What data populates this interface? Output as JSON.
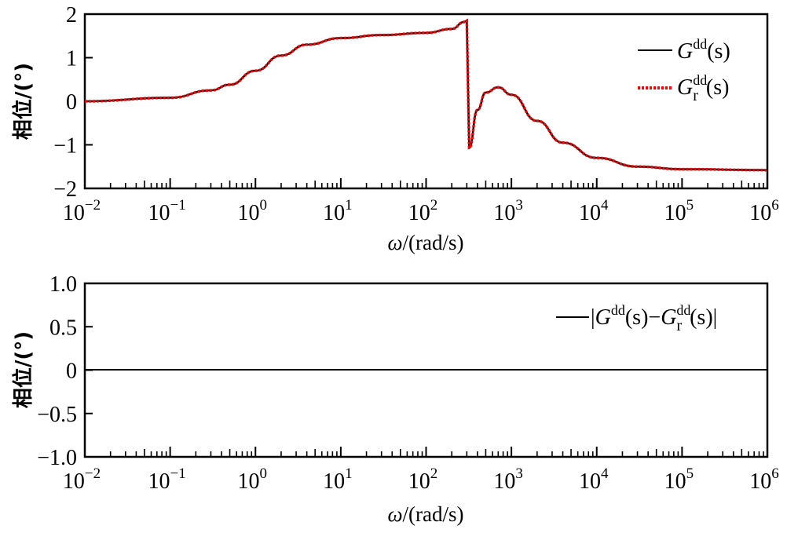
{
  "chart_data": [
    {
      "type": "line",
      "title": "",
      "xlabel": "ω/(rad/s)",
      "ylabel": "相位/(°)",
      "xscale": "log",
      "xlim": [
        0.01,
        1000000
      ],
      "ylim": [
        -2,
        2
      ],
      "xticks": [
        "10^-2",
        "10^-1",
        "10^0",
        "10^1",
        "10^2",
        "10^3",
        "10^4",
        "10^5",
        "10^6"
      ],
      "yticks": [
        "-2",
        "-1",
        "0",
        "1",
        "2"
      ],
      "grid": false,
      "legend_position": "upper right",
      "x": [
        0.01,
        0.1,
        0.3,
        0.5,
        1,
        2,
        4,
        10,
        30,
        100,
        200,
        280,
        300,
        320,
        400,
        500,
        700,
        1000,
        2000,
        4000,
        10000,
        30000,
        100000,
        1000000
      ],
      "series": [
        {
          "name": "G^dd(s)",
          "color": "#000000",
          "style": "solid",
          "values": [
            0.0,
            0.08,
            0.25,
            0.38,
            0.7,
            1.05,
            1.3,
            1.45,
            1.52,
            1.57,
            1.66,
            1.82,
            1.85,
            -1.07,
            -0.2,
            0.2,
            0.32,
            0.15,
            -0.45,
            -0.95,
            -1.3,
            -1.5,
            -1.56,
            -1.58
          ]
        },
        {
          "name": "G_r^dd(s)",
          "color": "#ff0000",
          "style": "dotted",
          "values": [
            0.0,
            0.08,
            0.25,
            0.38,
            0.7,
            1.05,
            1.3,
            1.45,
            1.52,
            1.57,
            1.66,
            1.82,
            1.85,
            -1.07,
            -0.2,
            0.2,
            0.32,
            0.15,
            -0.45,
            -0.95,
            -1.3,
            -1.5,
            -1.56,
            -1.58
          ]
        }
      ]
    },
    {
      "type": "line",
      "title": "",
      "xlabel": "ω/(rad/s)",
      "ylabel": "相位/(°)",
      "xscale": "log",
      "xlim": [
        0.01,
        1000000
      ],
      "ylim": [
        -1.0,
        1.0
      ],
      "xticks": [
        "10^-2",
        "10^-1",
        "10^0",
        "10^1",
        "10^2",
        "10^3",
        "10^4",
        "10^5",
        "10^6"
      ],
      "yticks": [
        "-1.0",
        "-0.5",
        "0",
        "0.5",
        "1.0"
      ],
      "grid": false,
      "legend_position": "upper right",
      "x": [
        0.01,
        1000000
      ],
      "series": [
        {
          "name": "|G^dd(s)-G_r^dd(s)|",
          "color": "#000000",
          "style": "solid",
          "values": [
            0,
            0
          ]
        }
      ]
    }
  ],
  "top": {
    "ylabel": "相位/(°)",
    "xlabel_omega": "ω",
    "xlabel_unit": "/(rad/s)",
    "yticks": [
      {
        "label": "2",
        "v": 2
      },
      {
        "label": "1",
        "v": 1
      },
      {
        "label": "0",
        "v": 0
      },
      {
        "label": "−1",
        "v": -1
      },
      {
        "label": "−2",
        "v": -2
      }
    ],
    "legend": [
      {
        "G": "G",
        "sup": "dd",
        "sub": "",
        "arg": "(s)"
      },
      {
        "G": "G",
        "sup": "dd",
        "sub": "r",
        "arg": "(s)"
      }
    ]
  },
  "bottom": {
    "ylabel": "相位/(°)",
    "xlabel_omega": "ω",
    "xlabel_unit": "/(rad/s)",
    "yticks": [
      {
        "label": "1.0",
        "v": 1.0
      },
      {
        "label": "0.5",
        "v": 0.5
      },
      {
        "label": "0",
        "v": 0
      },
      {
        "label": "−0.5",
        "v": -0.5
      },
      {
        "label": "−1.0",
        "v": -1.0
      }
    ],
    "legend": {
      "bar": "|",
      "G1": "G",
      "sup1": "dd",
      "arg1": "(s)",
      "minus": "−",
      "G2": "G",
      "sup2": "dd",
      "sub2": "r",
      "arg2": "(s)",
      "bar2": "|"
    }
  },
  "xtick_base": "10",
  "xtick_exps": [
    "−2",
    "−1",
    "0",
    "1",
    "2",
    "3",
    "4",
    "5",
    "6"
  ],
  "colors": {
    "series1": "#000000",
    "series2": "#ff0000",
    "axis": "#000000"
  }
}
